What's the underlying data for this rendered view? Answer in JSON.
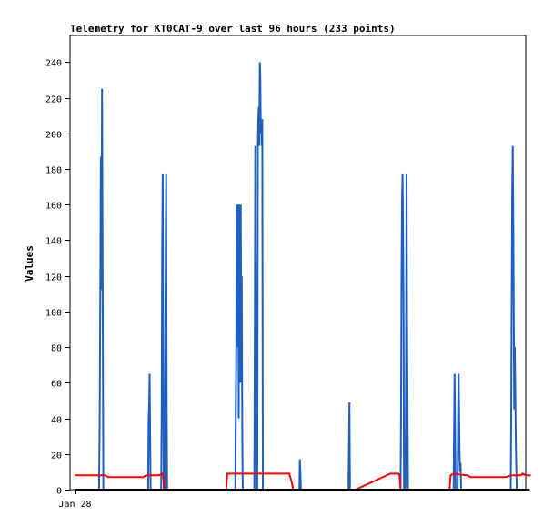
{
  "chart_data": {
    "type": "line",
    "title": "Telemetry for KT0CAT-9 over last 96 hours (233 points)",
    "xlabel": "",
    "ylabel": "Values",
    "x_tick_labels": [
      {
        "x": 0,
        "label": "Jan 28"
      }
    ],
    "xlim": [
      -5,
      450
    ],
    "ylim": [
      0,
      255
    ],
    "y_ticks": [
      0,
      20,
      40,
      60,
      80,
      100,
      120,
      140,
      160,
      180,
      200,
      220,
      240
    ],
    "grid": false,
    "colors": {
      "blue_series": "#1f5fbf",
      "red_series": "#ff0000",
      "zero_series": "#000000",
      "background": "#ffffff",
      "axes": "#000000"
    },
    "series": [
      {
        "color": "#1f5fbf",
        "points": [
          [
            0,
            0
          ],
          [
            24,
            0
          ],
          [
            24.6,
            38
          ],
          [
            25.2,
            112
          ],
          [
            25.8,
            187
          ],
          [
            26.4,
            112
          ],
          [
            27,
            225
          ],
          [
            27.6,
            112
          ],
          [
            28.2,
            0
          ],
          [
            73,
            0
          ],
          [
            73.5,
            40
          ],
          [
            74,
            48
          ],
          [
            74.5,
            65
          ],
          [
            75,
            30
          ],
          [
            75.5,
            0
          ],
          [
            86,
            0
          ],
          [
            86.5,
            45
          ],
          [
            87,
            133
          ],
          [
            87.5,
            177
          ],
          [
            88,
            80
          ],
          [
            88.5,
            0
          ],
          [
            89.5,
            0
          ],
          [
            90,
            45
          ],
          [
            90.5,
            133
          ],
          [
            91,
            177
          ],
          [
            91.5,
            45
          ],
          [
            92,
            0
          ],
          [
            160,
            0
          ],
          [
            160.5,
            40
          ],
          [
            161,
            80
          ],
          [
            161.5,
            160
          ],
          [
            162,
            120
          ],
          [
            162.5,
            80
          ],
          [
            163,
            160
          ],
          [
            163.5,
            40
          ],
          [
            164,
            160
          ],
          [
            164.5,
            130
          ],
          [
            165,
            60
          ],
          [
            165.5,
            160
          ],
          [
            166,
            80
          ],
          [
            166.5,
            120
          ],
          [
            167,
            30
          ],
          [
            167.5,
            0
          ],
          [
            179,
            0
          ],
          [
            179.5,
            90
          ],
          [
            180,
            193
          ],
          [
            180.5,
            100
          ],
          [
            181,
            0
          ],
          [
            182,
            0
          ],
          [
            182.5,
            193
          ],
          [
            183,
            208
          ],
          [
            183.5,
            215
          ],
          [
            184,
            193
          ],
          [
            184.5,
            240
          ],
          [
            185,
            232
          ],
          [
            185.5,
            200
          ],
          [
            186,
            208
          ],
          [
            186.5,
            193
          ],
          [
            187,
            208
          ],
          [
            187.5,
            0
          ],
          [
            224,
            0
          ],
          [
            224.5,
            17
          ],
          [
            225,
            10
          ],
          [
            225.5,
            0
          ],
          [
            273,
            0
          ],
          [
            273.5,
            25
          ],
          [
            274,
            49
          ],
          [
            274.5,
            0
          ],
          [
            325,
            0
          ],
          [
            325.5,
            40
          ],
          [
            326,
            120
          ],
          [
            326.5,
            162
          ],
          [
            327,
            177
          ],
          [
            327.5,
            150
          ],
          [
            328,
            100
          ],
          [
            328.5,
            0
          ],
          [
            330,
            0
          ],
          [
            330.5,
            60
          ],
          [
            331,
            177
          ],
          [
            331.5,
            100
          ],
          [
            332,
            45
          ],
          [
            332.5,
            0
          ],
          [
            378,
            0
          ],
          [
            378.5,
            40
          ],
          [
            379,
            65
          ],
          [
            379.5,
            30
          ],
          [
            380,
            0
          ],
          [
            382,
            0
          ],
          [
            382.5,
            45
          ],
          [
            383,
            65
          ],
          [
            383.5,
            40
          ],
          [
            384,
            20
          ],
          [
            384.5,
            10
          ],
          [
            385,
            15
          ],
          [
            385.5,
            0
          ],
          [
            435,
            0
          ],
          [
            435.5,
            40
          ],
          [
            436,
            110
          ],
          [
            436.5,
            165
          ],
          [
            437,
            193
          ],
          [
            437.5,
            160
          ],
          [
            438,
            100
          ],
          [
            438.5,
            45
          ],
          [
            439,
            80
          ],
          [
            439.5,
            60
          ],
          [
            440,
            30
          ],
          [
            440.5,
            15
          ],
          [
            441,
            0
          ],
          [
            450,
            0
          ]
        ]
      },
      {
        "color": "#ff0000",
        "points": [
          [
            0,
            8
          ],
          [
            30,
            8
          ],
          [
            33,
            7
          ],
          [
            68,
            7
          ],
          [
            71,
            8
          ],
          [
            84,
            8
          ],
          [
            87,
            9
          ],
          [
            88,
            8
          ],
          [
            89,
            0
          ],
          [
            151,
            0
          ],
          [
            152,
            9
          ],
          [
            214,
            9
          ],
          [
            216,
            5
          ],
          [
            218,
            0
          ],
          [
            280,
            0
          ],
          [
            315,
            9
          ],
          [
            323,
            9
          ],
          [
            324,
            8
          ],
          [
            325,
            0
          ],
          [
            374,
            0
          ],
          [
            375,
            8
          ],
          [
            378,
            9
          ],
          [
            390,
            8
          ],
          [
            392,
            8
          ],
          [
            395,
            7
          ],
          [
            430,
            7
          ],
          [
            435,
            8
          ],
          [
            445,
            8
          ],
          [
            447,
            9
          ],
          [
            450,
            8
          ],
          [
            455,
            8
          ]
        ]
      },
      {
        "color": "#000000",
        "points": [
          [
            0,
            0
          ],
          [
            454,
            0
          ]
        ]
      }
    ]
  }
}
